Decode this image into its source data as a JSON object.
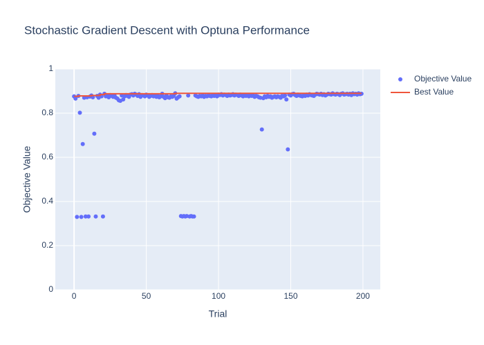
{
  "chart_data": {
    "type": "scatter",
    "title": "Stochastic Gradient Descent with Optuna Performance",
    "xlabel": "Trial",
    "ylabel": "Objective Value",
    "xlim": [
      -13,
      212
    ],
    "ylim": [
      0,
      1
    ],
    "xticks": [
      0,
      50,
      100,
      150,
      200
    ],
    "yticks": [
      0,
      0.2,
      0.4,
      0.6,
      0.8,
      1
    ],
    "grid": true,
    "legend": "right",
    "series": [
      {
        "name": "Objective Value",
        "color": "#636efa",
        "mode": "markers",
        "x": [
          0,
          1,
          2,
          3,
          4,
          5,
          6,
          7,
          8,
          9,
          10,
          11,
          12,
          13,
          14,
          15,
          16,
          17,
          18,
          19,
          20,
          21,
          22,
          23,
          24,
          25,
          26,
          27,
          28,
          29,
          30,
          31,
          32,
          33,
          34,
          35,
          36,
          37,
          38,
          39,
          40,
          41,
          42,
          43,
          44,
          45,
          46,
          47,
          48,
          49,
          50,
          51,
          52,
          53,
          54,
          55,
          56,
          57,
          58,
          59,
          60,
          61,
          62,
          63,
          64,
          65,
          66,
          67,
          68,
          69,
          70,
          71,
          72,
          73,
          74,
          75,
          76,
          77,
          78,
          79,
          80,
          81,
          82,
          83,
          84,
          85,
          86,
          87,
          88,
          89,
          90,
          91,
          92,
          93,
          94,
          95,
          96,
          97,
          98,
          99,
          100,
          101,
          102,
          103,
          104,
          105,
          106,
          107,
          108,
          109,
          110,
          111,
          112,
          113,
          114,
          115,
          116,
          117,
          118,
          119,
          120,
          121,
          122,
          123,
          124,
          125,
          126,
          127,
          128,
          129,
          130,
          131,
          132,
          133,
          134,
          135,
          136,
          137,
          138,
          139,
          140,
          141,
          142,
          143,
          144,
          145,
          146,
          147,
          148,
          149,
          150,
          151,
          152,
          153,
          154,
          155,
          156,
          157,
          158,
          159,
          160,
          161,
          162,
          163,
          164,
          165,
          166,
          167,
          168,
          169,
          170,
          171,
          172,
          173,
          174,
          175,
          176,
          177,
          178,
          179,
          180,
          181,
          182,
          183,
          184,
          185,
          186,
          187,
          188,
          189,
          190,
          191,
          192,
          193,
          194,
          195,
          196,
          197,
          198,
          199
        ],
        "values": [
          0.876,
          0.866,
          0.33,
          0.878,
          0.802,
          0.33,
          0.66,
          0.87,
          0.332,
          0.872,
          0.332,
          0.875,
          0.88,
          0.872,
          0.707,
          0.332,
          0.878,
          0.87,
          0.884,
          0.876,
          0.332,
          0.888,
          0.876,
          0.88,
          0.872,
          0.882,
          0.878,
          0.874,
          0.88,
          0.87,
          0.866,
          0.858,
          0.856,
          0.88,
          0.862,
          0.876,
          0.882,
          0.878,
          0.874,
          0.884,
          0.886,
          0.88,
          0.888,
          0.884,
          0.878,
          0.886,
          0.874,
          0.882,
          0.88,
          0.876,
          0.884,
          0.88,
          0.874,
          0.878,
          0.882,
          0.876,
          0.88,
          0.874,
          0.878,
          0.872,
          0.876,
          0.888,
          0.874,
          0.868,
          0.88,
          0.872,
          0.87,
          0.876,
          0.874,
          0.878,
          0.89,
          0.866,
          0.872,
          0.876,
          0.334,
          0.332,
          0.334,
          0.332,
          0.334,
          0.88,
          0.332,
          0.334,
          0.332,
          0.332,
          0.88,
          0.876,
          0.874,
          0.878,
          0.876,
          0.88,
          0.874,
          0.878,
          0.876,
          0.88,
          0.878,
          0.876,
          0.882,
          0.878,
          0.88,
          0.876,
          0.884,
          0.882,
          0.886,
          0.88,
          0.884,
          0.882,
          0.878,
          0.884,
          0.88,
          0.882,
          0.886,
          0.88,
          0.884,
          0.882,
          0.878,
          0.884,
          0.88,
          0.876,
          0.882,
          0.878,
          0.88,
          0.876,
          0.882,
          0.878,
          0.88,
          0.874,
          0.878,
          0.876,
          0.872,
          0.87,
          0.726,
          0.868,
          0.876,
          0.872,
          0.878,
          0.874,
          0.876,
          0.87,
          0.874,
          0.876,
          0.872,
          0.876,
          0.874,
          0.87,
          0.878,
          0.876,
          0.88,
          0.862,
          0.636,
          0.884,
          0.88,
          0.886,
          0.888,
          0.882,
          0.878,
          0.884,
          0.88,
          0.878,
          0.876,
          0.882,
          0.878,
          0.884,
          0.88,
          0.886,
          0.882,
          0.88,
          0.878,
          0.884,
          0.888,
          0.886,
          0.884,
          0.888,
          0.882,
          0.886,
          0.88,
          0.884,
          0.888,
          0.886,
          0.884,
          0.89,
          0.886,
          0.884,
          0.888,
          0.886,
          0.882,
          0.888,
          0.89,
          0.884,
          0.886,
          0.888,
          0.884,
          0.888,
          0.882,
          0.89,
          0.886,
          0.888,
          0.884,
          0.89,
          0.886,
          0.888
        ]
      },
      {
        "name": "Best Value",
        "color": "#ef553b",
        "mode": "lines",
        "line_shape": "hv",
        "x": [
          0,
          3,
          12,
          18,
          21,
          70,
          199
        ],
        "values": [
          0.876,
          0.878,
          0.88,
          0.884,
          0.888,
          0.89,
          0.89
        ]
      }
    ]
  }
}
